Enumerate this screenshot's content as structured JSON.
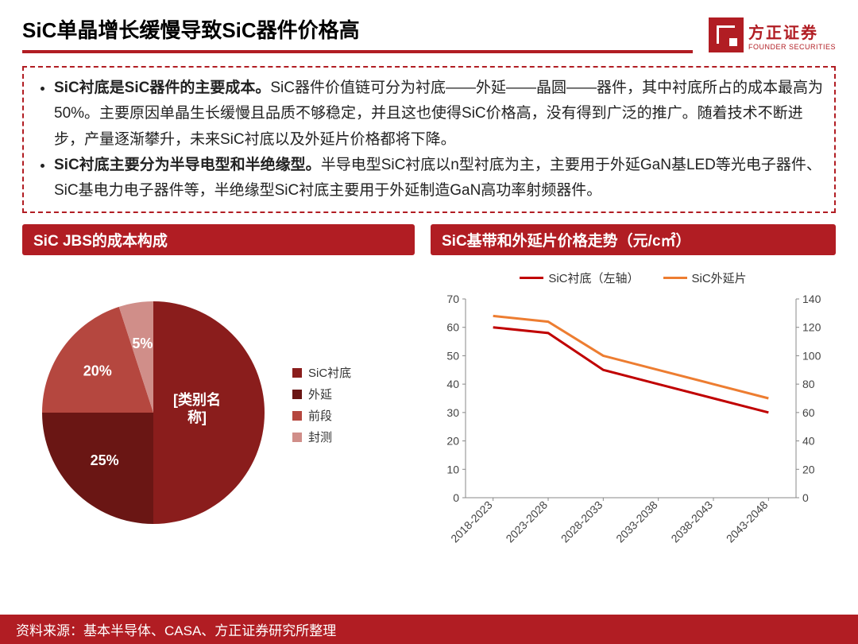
{
  "header": {
    "title": "SiC单晶增长缓慢导致SiC器件价格高",
    "logo_cn": "方正证券",
    "logo_en": "FOUNDER SECURITIES"
  },
  "colors": {
    "brand": "#b11d23",
    "underline": "#b11d23",
    "box_border": "#b11d23",
    "text": "#222222",
    "axis": "#888888",
    "grid": "#cccccc"
  },
  "description": {
    "bullets": [
      {
        "lead": "SiC衬底是SiC器件的主要成本。",
        "body": "SiC器件价值链可分为衬底——外延——晶圆——器件，其中衬底所占的成本最高为50%。主要原因单晶生长缓慢且品质不够稳定，并且这也使得SiC价格高，没有得到广泛的推广。随着技术不断进步，产量逐渐攀升，未来SiC衬底以及外延片价格都将下降。"
      },
      {
        "lead": "SiC衬底主要分为半导电型和半绝缘型。",
        "body": "半导电型SiC衬底以n型衬底为主，主要用于外延GaN基LED等光电子器件、SiC基电力电子器件等，半绝缘型SiC衬底主要用于外延制造GaN高功率射频器件。"
      }
    ]
  },
  "pie_chart": {
    "title": "SiC JBS的成本构成",
    "type": "pie",
    "center_label": "[类别名称]",
    "slices": [
      {
        "label": "SiC衬底",
        "value": 50,
        "percent_label": "",
        "color": "#8a1d1c"
      },
      {
        "label": "外延",
        "value": 25,
        "percent_label": "25%",
        "color": "#6a1614"
      },
      {
        "label": "前段",
        "value": 20,
        "percent_label": "20%",
        "color": "#b5473f"
      },
      {
        "label": "封测",
        "value": 5,
        "percent_label": "5%",
        "color": "#d08e89"
      }
    ],
    "label_color": "#ffffff",
    "label_fontsize": 18,
    "legend_fontsize": 15
  },
  "line_chart": {
    "title": "SiC基带和外延片价格走势（元/c㎡）",
    "type": "line-dual-axis",
    "categories": [
      "2018-2023",
      "2023-2028",
      "2028-2033",
      "2033-2038",
      "2038-2043",
      "2043-2048"
    ],
    "series": [
      {
        "name": "SiC衬底（左轴）",
        "axis": "left",
        "color": "#c00000",
        "line_width": 3,
        "values": [
          60,
          58,
          45,
          40,
          35,
          30
        ]
      },
      {
        "name": "SiC外延片",
        "axis": "right",
        "color": "#ed7d31",
        "line_width": 3,
        "values": [
          128,
          124,
          100,
          90,
          80,
          70
        ]
      }
    ],
    "left_axis": {
      "min": 0,
      "max": 70,
      "step": 10
    },
    "right_axis": {
      "min": 0,
      "max": 140,
      "step": 20
    },
    "axis_fontsize": 14,
    "x_label_rotation": -45,
    "background": "#ffffff",
    "grid_color": "#cccccc"
  },
  "footer": {
    "text": "资料来源：基本半导体、CASA、方正证券研究所整理"
  }
}
